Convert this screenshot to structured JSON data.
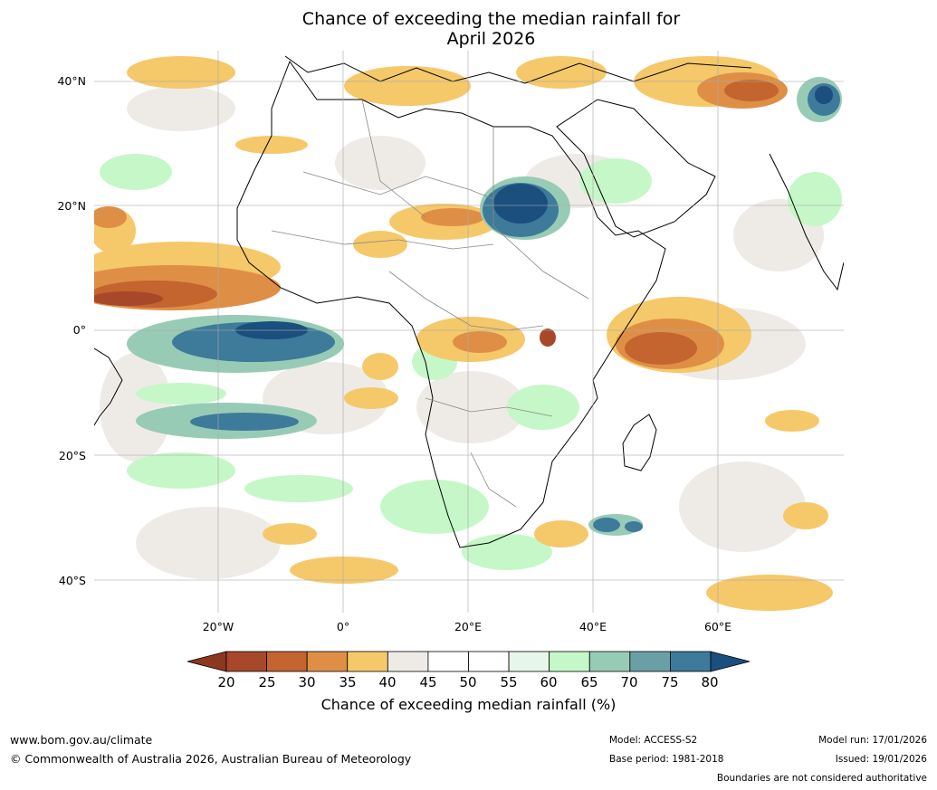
{
  "title": {
    "line1": "Chance of exceeding the median rainfall for",
    "line2": "April 2026"
  },
  "map": {
    "lat_labels": [
      "40°N",
      "20°N",
      "0°",
      "20°S",
      "40°S"
    ],
    "lon_labels": [
      "20°W",
      "0°",
      "20°E",
      "40°E",
      "60°E"
    ]
  },
  "colorbar": {
    "ticks": [
      "20",
      "25",
      "30",
      "35",
      "40",
      "45",
      "50",
      "55",
      "60",
      "65",
      "70",
      "75",
      "80"
    ],
    "colors": [
      "#a8482a",
      "#c4642f",
      "#de8f45",
      "#f5c86a",
      "#eeebe7",
      "#ffffff",
      "#ffffff",
      "#e6f6e8",
      "#c6f7c8",
      "#98cbb5",
      "#69a0a6",
      "#3e7a9a"
    ],
    "low_extend_color": "#8c3720",
    "high_extend_color": "#1a4f7e",
    "label": "Chance of exceeding median rainfall (%)"
  },
  "footer": {
    "website": "www.bom.gov.au/climate",
    "copyright": "© Commonwealth of Australia 2026, Australian Bureau of Meteorology",
    "model": "Model: ACCESS-S2",
    "base_period": "Base period: 1981-2018",
    "model_run": "Model run: 17/01/2026",
    "issued": "Issued: 19/01/2026",
    "disclaimer": "Boundaries are not considered authoritative"
  }
}
